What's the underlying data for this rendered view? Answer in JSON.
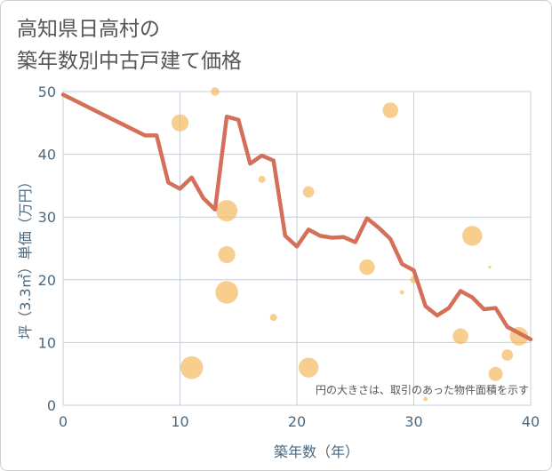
{
  "title_line1": "高知県日高村の",
  "title_line2": "築年数別中古戸建て価格",
  "chart_data": {
    "type": "line+bubble",
    "xlabel": "築年数（年）",
    "ylabel": "坪（3.3㎡）単価（万円）",
    "xlim": [
      0,
      40
    ],
    "ylim": [
      0,
      50
    ],
    "xticks": [
      0,
      10,
      20,
      30,
      40
    ],
    "yticks": [
      0,
      10,
      20,
      30,
      40,
      50
    ],
    "grid": true,
    "note": "円の大きさは、取引のあった物件面積を示す",
    "colors": {
      "line": "#d4705a",
      "bubble": "#f5b960",
      "axis_text": "#4a6880",
      "grid": "#c5cedb"
    },
    "line_series": {
      "x": [
        0,
        7,
        8,
        9,
        10,
        11,
        12,
        13,
        14,
        15,
        16,
        17,
        18,
        19,
        20,
        21,
        22,
        23,
        24,
        25,
        26,
        27,
        28,
        29,
        30,
        31,
        32,
        33,
        34,
        35,
        36,
        37,
        38,
        39,
        40
      ],
      "y": [
        49.5,
        43,
        43,
        35.5,
        34.5,
        36.3,
        33,
        31.2,
        46,
        45.5,
        38.5,
        39.8,
        39,
        27,
        25.3,
        28,
        27,
        26.7,
        26.8,
        26,
        29.8,
        28.3,
        26.5,
        22.5,
        21.5,
        15.8,
        14.3,
        15.5,
        18.2,
        17.2,
        15.3,
        15.5,
        12.5,
        11.5,
        10.5
      ]
    },
    "bubbles": [
      {
        "x": 10,
        "y": 45,
        "size": 12
      },
      {
        "x": 13,
        "y": 50,
        "size": 6
      },
      {
        "x": 11,
        "y": 6,
        "size": 16
      },
      {
        "x": 14,
        "y": 31,
        "size": 15
      },
      {
        "x": 14,
        "y": 24,
        "size": 12
      },
      {
        "x": 14,
        "y": 18,
        "size": 16
      },
      {
        "x": 17,
        "y": 36,
        "size": 5
      },
      {
        "x": 18,
        "y": 14,
        "size": 5
      },
      {
        "x": 21,
        "y": 34,
        "size": 8
      },
      {
        "x": 21,
        "y": 6,
        "size": 14
      },
      {
        "x": 26,
        "y": 22,
        "size": 11
      },
      {
        "x": 28,
        "y": 47,
        "size": 11
      },
      {
        "x": 29,
        "y": 18,
        "size": 3
      },
      {
        "x": 30,
        "y": 20,
        "size": 5
      },
      {
        "x": 31,
        "y": 1,
        "size": 3
      },
      {
        "x": 34,
        "y": 11,
        "size": 11
      },
      {
        "x": 35,
        "y": 27,
        "size": 14
      },
      {
        "x": 36.5,
        "y": 22,
        "size": 2
      },
      {
        "x": 37,
        "y": 5,
        "size": 10
      },
      {
        "x": 38,
        "y": 8,
        "size": 8
      },
      {
        "x": 39,
        "y": 11,
        "size": 13
      }
    ]
  }
}
